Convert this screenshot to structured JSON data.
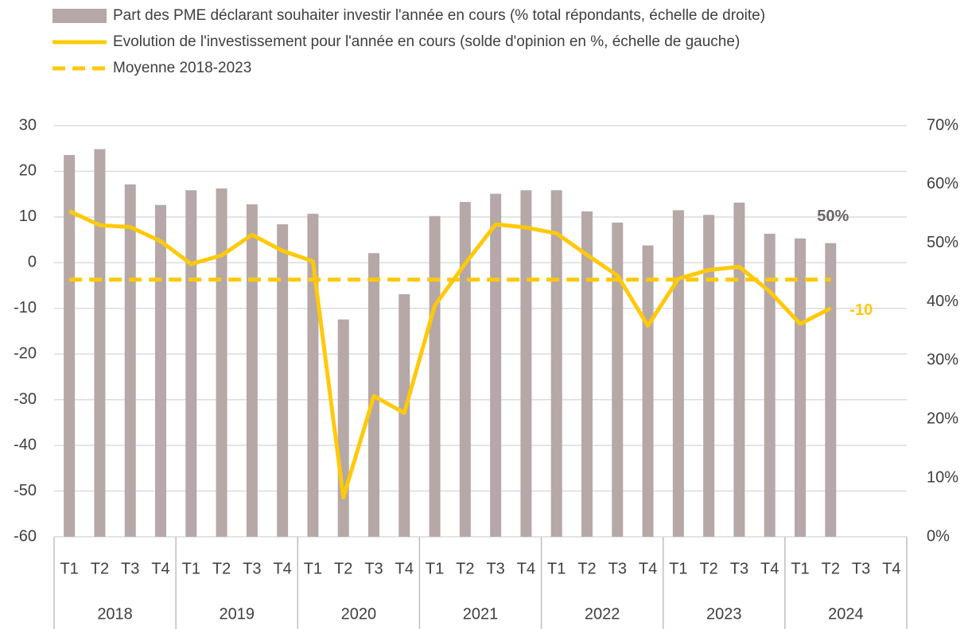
{
  "chart_data": {
    "type": "bar",
    "categories": [
      "T1",
      "T2",
      "T3",
      "T4",
      "T1",
      "T2",
      "T3",
      "T4",
      "T1",
      "T2",
      "T3",
      "T4",
      "T1",
      "T2",
      "T3",
      "T4",
      "T1",
      "T2",
      "T3",
      "T4",
      "T1",
      "T2",
      "T3",
      "T4",
      "T1",
      "T2",
      "T3",
      "T4"
    ],
    "years": [
      "2018",
      "2019",
      "2020",
      "2021",
      "2022",
      "2023",
      "2024"
    ],
    "ylim": [
      -60,
      30
    ],
    "yticks": [
      -60,
      -50,
      -40,
      -30,
      -20,
      -10,
      0,
      10,
      20,
      30
    ],
    "y2lim": [
      0,
      70
    ],
    "y2ticks": [
      {
        "value": 0,
        "label": "0%"
      },
      {
        "value": 10,
        "label": "10%"
      },
      {
        "value": 20,
        "label": "20%"
      },
      {
        "value": 30,
        "label": "30%"
      },
      {
        "value": 40,
        "label": "40%"
      },
      {
        "value": 50,
        "label": "50%"
      },
      {
        "value": 60,
        "label": "60%"
      },
      {
        "value": 70,
        "label": "70%"
      }
    ],
    "grid": true,
    "series": [
      {
        "name": "Part des PME déclarant souhaiter investir l'année en cours (% total répondants, échelle de droite)",
        "type": "bar",
        "axis": "y2",
        "color": "#b5a8a6",
        "values": [
          65,
          66,
          60,
          56.5,
          59,
          59.3,
          56.6,
          53.2,
          55,
          37,
          48.3,
          41.3,
          54.6,
          57,
          58.4,
          59,
          59,
          55.4,
          53.5,
          49.6,
          55.6,
          54.8,
          56.9,
          51.6,
          50.8,
          50,
          null,
          null
        ],
        "value_labels": [
          null,
          null,
          null,
          null,
          null,
          null,
          null,
          null,
          null,
          null,
          null,
          null,
          null,
          null,
          null,
          null,
          null,
          null,
          null,
          null,
          null,
          null,
          null,
          null,
          null,
          "50%",
          null,
          null
        ]
      },
      {
        "name": "Evolution de l'investissement pour l'année en cours (solde d'opinion en %, échelle de gauche)",
        "type": "line",
        "color": "#ffc90a",
        "values": [
          11.3,
          8.2,
          7.8,
          4.7,
          -0.3,
          1.6,
          6.1,
          2.6,
          0.3,
          -51.4,
          -29.2,
          -32.9,
          -9.4,
          -0.2,
          8.4,
          7.7,
          6.4,
          1.7,
          -2.8,
          -13.8,
          -3.5,
          -1.6,
          -0.9,
          -6.3,
          -13.4,
          -10,
          null,
          null
        ],
        "value_labels": [
          null,
          null,
          null,
          null,
          null,
          null,
          null,
          null,
          null,
          null,
          null,
          null,
          null,
          null,
          null,
          null,
          null,
          null,
          null,
          null,
          null,
          null,
          null,
          null,
          null,
          "-10",
          null,
          null
        ]
      },
      {
        "name": "Moyenne 2018-2023",
        "type": "dashed",
        "color": "#ffc90a",
        "values": [
          -3.7,
          -3.7,
          -3.7,
          -3.7,
          -3.7,
          -3.7,
          -3.7,
          -3.7,
          -3.7,
          -3.7,
          -3.7,
          -3.7,
          -3.7,
          -3.7,
          -3.7,
          -3.7,
          -3.7,
          -3.7,
          -3.7,
          -3.7,
          -3.7,
          -3.7,
          -3.7,
          -3.7,
          -3.7,
          -3.7,
          null,
          null
        ]
      }
    ]
  }
}
